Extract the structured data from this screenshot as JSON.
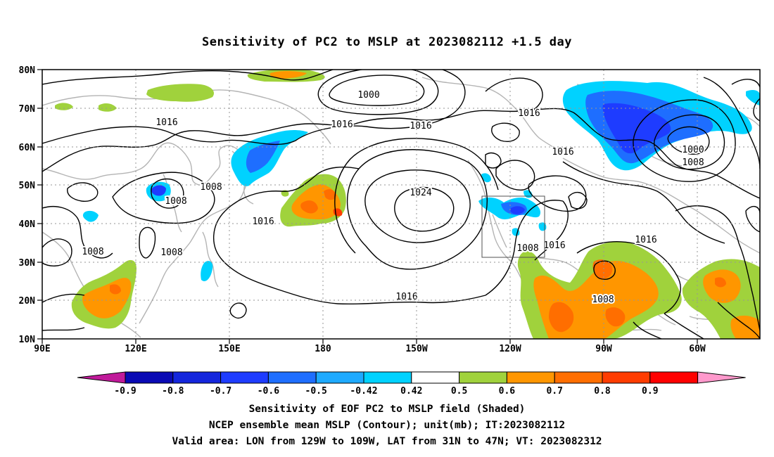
{
  "title": "Sensitivity of PC2 to MSLP at 2023082112 +1.5 day",
  "map": {
    "lat_labels": [
      "80N",
      "70N",
      "60N",
      "50N",
      "40N",
      "30N",
      "20N",
      "10N"
    ],
    "lon_labels": [
      "90E",
      "120E",
      "150E",
      "180",
      "150W",
      "120W",
      "90W",
      "60W"
    ],
    "contour_labels": [
      {
        "text": "1000"
      },
      {
        "text": "1016"
      },
      {
        "text": "1016"
      },
      {
        "text": "1016"
      },
      {
        "text": "1016"
      },
      {
        "text": "1016"
      },
      {
        "text": "1000"
      },
      {
        "text": "1008"
      },
      {
        "text": "1008"
      },
      {
        "text": "1024"
      },
      {
        "text": "1008"
      },
      {
        "text": "1016"
      },
      {
        "text": "1008"
      },
      {
        "text": "1008"
      },
      {
        "text": "1008"
      },
      {
        "text": "1016"
      },
      {
        "text": "1016"
      },
      {
        "text": "1016"
      },
      {
        "text": "1008"
      }
    ],
    "valid_box": {
      "lon_from": "129W",
      "lon_to": "109W",
      "lat_from": "31N",
      "lat_to": "47N"
    }
  },
  "colorbar": {
    "labels": [
      "-0.9",
      "-0.8",
      "-0.7",
      "-0.6",
      "-0.5",
      "-0.42",
      "0.42",
      "0.5",
      "0.6",
      "0.7",
      "0.8",
      "0.9"
    ],
    "colors": [
      "#c01a9a",
      "#0a0ab4",
      "#1426dc",
      "#1e3cff",
      "#1e6eff",
      "#1eaaff",
      "#00d2ff",
      "#ffffff",
      "#a0d23c",
      "#ff9600",
      "#ff6e00",
      "#ff3c00",
      "#ff0000",
      "#ff99cc"
    ]
  },
  "captions": {
    "line1": "Sensitivity of EOF PC2 to MSLP field (Shaded)",
    "line2": "NCEP ensemble mean MSLP (Contour); unit(mb); IT:2023082112",
    "line3": "Valid area: LON from 129W to 109W, LAT from 31N to 47N; VT: 2023082312"
  }
}
